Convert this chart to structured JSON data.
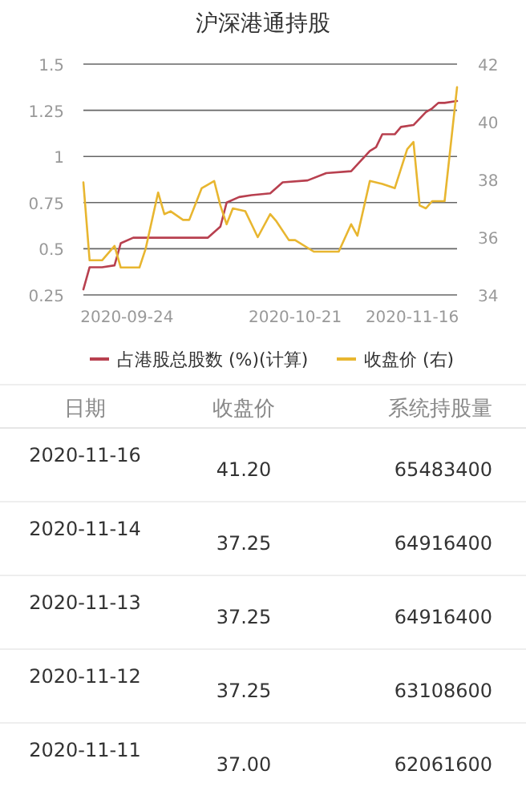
{
  "chart_data": [
    {
      "type": "line",
      "title": "沪深港通持股",
      "xlim": [
        "2020-09-17",
        "2020-11-16"
      ],
      "xticks": [
        "2020-09-24",
        "2020-10-21",
        "2020-11-16"
      ],
      "ylim": [
        0.25,
        1.5
      ],
      "yticks": [
        0.25,
        0.5,
        0.75,
        1,
        1.25,
        1.5
      ],
      "y2lim": [
        34,
        42
      ],
      "y2ticks": [
        34,
        36,
        38,
        40,
        42
      ],
      "grid": "y",
      "legend": "bottom",
      "series": [
        {
          "name": "占港股总股数 (%)(计算)",
          "color": "#b8404f",
          "x": [
            "2020-09-17",
            "2020-09-18",
            "2020-09-20",
            "2020-09-22",
            "2020-09-23",
            "2020-09-25",
            "2020-10-07",
            "2020-10-09",
            "2020-10-10",
            "2020-10-12",
            "2020-10-14",
            "2020-10-17",
            "2020-10-19",
            "2020-10-23",
            "2020-10-26",
            "2020-10-30",
            "2020-11-02",
            "2020-11-03",
            "2020-11-04",
            "2020-11-06",
            "2020-11-07",
            "2020-11-09",
            "2020-11-11",
            "2020-11-12",
            "2020-11-13",
            "2020-11-14",
            "2020-11-16"
          ],
          "values": [
            0.28,
            0.4,
            0.4,
            0.41,
            0.53,
            0.56,
            0.56,
            0.62,
            0.75,
            0.78,
            0.79,
            0.8,
            0.86,
            0.87,
            0.91,
            0.92,
            1.03,
            1.05,
            1.12,
            1.12,
            1.16,
            1.17,
            1.24,
            1.26,
            1.29,
            1.29,
            1.3
          ]
        },
        {
          "name": "收盘价 (右)",
          "color": "#e8b630",
          "axis": "y2",
          "x": [
            "2020-09-17",
            "2020-09-18",
            "2020-09-20",
            "2020-09-22",
            "2020-09-23",
            "2020-09-26",
            "2020-09-27",
            "2020-09-29",
            "2020-09-30",
            "2020-10-01",
            "2020-10-03",
            "2020-10-04",
            "2020-10-06",
            "2020-10-08",
            "2020-10-09",
            "2020-10-10",
            "2020-10-11",
            "2020-10-13",
            "2020-10-14",
            "2020-10-15",
            "2020-10-17",
            "2020-10-18",
            "2020-10-20",
            "2020-10-21",
            "2020-10-24",
            "2020-10-28",
            "2020-10-30",
            "2020-10-31",
            "2020-11-02",
            "2020-11-04",
            "2020-11-06",
            "2020-11-08",
            "2020-11-09",
            "2020-11-10",
            "2020-11-11",
            "2020-11-12",
            "2020-11-13",
            "2020-11-14",
            "2020-11-16"
          ],
          "values": [
            37.9,
            35.2,
            35.2,
            35.7,
            34.95,
            34.95,
            35.6,
            37.55,
            36.8,
            36.9,
            36.6,
            36.6,
            37.7,
            37.95,
            37.1,
            36.45,
            37.0,
            36.9,
            36.45,
            36.0,
            36.8,
            36.55,
            35.9,
            35.9,
            35.5,
            35.5,
            36.45,
            36.05,
            37.95,
            37.85,
            37.7,
            39.05,
            39.3,
            37.1,
            37.0,
            37.25,
            37.25,
            37.25,
            41.2
          ]
        }
      ]
    },
    {
      "type": "other",
      "categories": [
        "日期",
        "收盘价",
        "系统持股量"
      ],
      "annotations": [
        "2020-11-16",
        "41.20",
        "65483400",
        "2020-11-14",
        "37.25",
        "64916400",
        "2020-11-13",
        "37.25",
        "64916400",
        "2020-11-12",
        "37.25",
        "63108600",
        "2020-11-11",
        "37.00",
        "62061600"
      ]
    }
  ]
}
